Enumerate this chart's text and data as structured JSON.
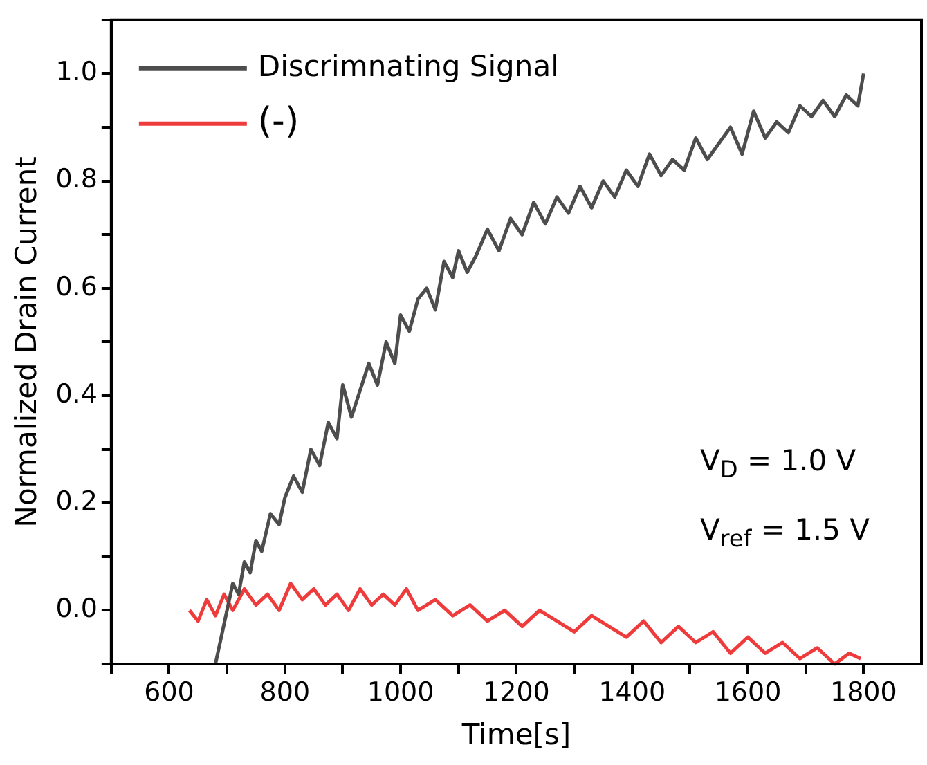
{
  "chart_data": {
    "type": "line",
    "xlabel": "Time[s]",
    "ylabel": "Normalized Drain Current",
    "xlim": [
      500,
      1900
    ],
    "xticks": [
      {
        "value": 500,
        "label": null
      },
      600,
      {
        "value": 700,
        "label": null
      },
      800,
      {
        "value": 900,
        "label": null
      },
      1000,
      {
        "value": 1100,
        "label": null
      },
      1200,
      {
        "value": 1300,
        "label": null
      },
      1400,
      {
        "value": 1500,
        "label": null
      },
      1600,
      {
        "value": 1700,
        "label": null
      },
      1800
    ],
    "ylim": [
      -0.1,
      1.1
    ],
    "yticks": [
      {
        "value": -0.1,
        "label": null
      },
      {
        "value": 0,
        "label": "0.0"
      },
      {
        "value": 0.1,
        "label": null
      },
      0.2,
      {
        "value": 0.3,
        "label": null
      },
      0.4,
      {
        "value": 0.5,
        "label": null
      },
      0.6,
      {
        "value": 0.7,
        "label": null
      },
      0.8,
      {
        "value": 0.9,
        "label": null
      },
      {
        "value": 1,
        "label": "1.0"
      },
      {
        "value": 1.1,
        "label": null
      }
    ],
    "grid": false,
    "legend": "top left",
    "marker": "none",
    "line_style": "solid",
    "series": [
      {
        "name": "Discrimnating Signal",
        "color": "#4d4d4d",
        "x": [
          680,
          690,
          700,
          710,
          720,
          730,
          740,
          750,
          760,
          775,
          790,
          800,
          815,
          830,
          845,
          860,
          875,
          890,
          900,
          915,
          930,
          945,
          960,
          975,
          990,
          1000,
          1015,
          1030,
          1045,
          1060,
          1075,
          1090,
          1100,
          1115,
          1130,
          1150,
          1170,
          1190,
          1210,
          1230,
          1250,
          1270,
          1290,
          1310,
          1330,
          1350,
          1370,
          1390,
          1410,
          1430,
          1450,
          1470,
          1490,
          1510,
          1530,
          1550,
          1570,
          1590,
          1610,
          1630,
          1650,
          1670,
          1690,
          1710,
          1730,
          1750,
          1770,
          1790,
          1800
        ],
        "values": [
          -0.1,
          -0.05,
          0.0,
          0.05,
          0.03,
          0.09,
          0.07,
          0.13,
          0.11,
          0.18,
          0.16,
          0.21,
          0.25,
          0.22,
          0.3,
          0.27,
          0.35,
          0.32,
          0.42,
          0.36,
          0.41,
          0.46,
          0.42,
          0.5,
          0.46,
          0.55,
          0.52,
          0.58,
          0.6,
          0.56,
          0.65,
          0.62,
          0.67,
          0.63,
          0.66,
          0.71,
          0.67,
          0.73,
          0.7,
          0.76,
          0.72,
          0.77,
          0.74,
          0.79,
          0.75,
          0.8,
          0.77,
          0.82,
          0.79,
          0.85,
          0.81,
          0.84,
          0.82,
          0.88,
          0.84,
          0.87,
          0.9,
          0.85,
          0.93,
          0.88,
          0.91,
          0.89,
          0.94,
          0.92,
          0.95,
          0.92,
          0.96,
          0.94,
          1.0
        ]
      },
      {
        "name": "(-)",
        "color": "#ee3b3b",
        "x": [
          635,
          650,
          665,
          680,
          695,
          710,
          730,
          750,
          770,
          790,
          810,
          830,
          850,
          870,
          890,
          910,
          930,
          950,
          970,
          990,
          1010,
          1030,
          1060,
          1090,
          1120,
          1150,
          1180,
          1210,
          1240,
          1270,
          1300,
          1330,
          1360,
          1390,
          1420,
          1450,
          1480,
          1510,
          1540,
          1570,
          1600,
          1630,
          1660,
          1690,
          1720,
          1750,
          1775,
          1795
        ],
        "values": [
          0.0,
          -0.02,
          0.02,
          -0.01,
          0.03,
          0.0,
          0.04,
          0.01,
          0.03,
          0.0,
          0.05,
          0.02,
          0.04,
          0.01,
          0.03,
          0.0,
          0.04,
          0.01,
          0.03,
          0.01,
          0.04,
          0.0,
          0.02,
          -0.01,
          0.01,
          -0.02,
          0.0,
          -0.03,
          0.0,
          -0.02,
          -0.04,
          -0.01,
          -0.03,
          -0.05,
          -0.02,
          -0.06,
          -0.03,
          -0.06,
          -0.04,
          -0.08,
          -0.05,
          -0.08,
          -0.06,
          -0.09,
          -0.07,
          -0.1,
          -0.08,
          -0.09
        ]
      }
    ],
    "annotations": [
      "V$_{D}$ = 1.0 V",
      "V$_{ref}$ = 1.5 V"
    ]
  }
}
